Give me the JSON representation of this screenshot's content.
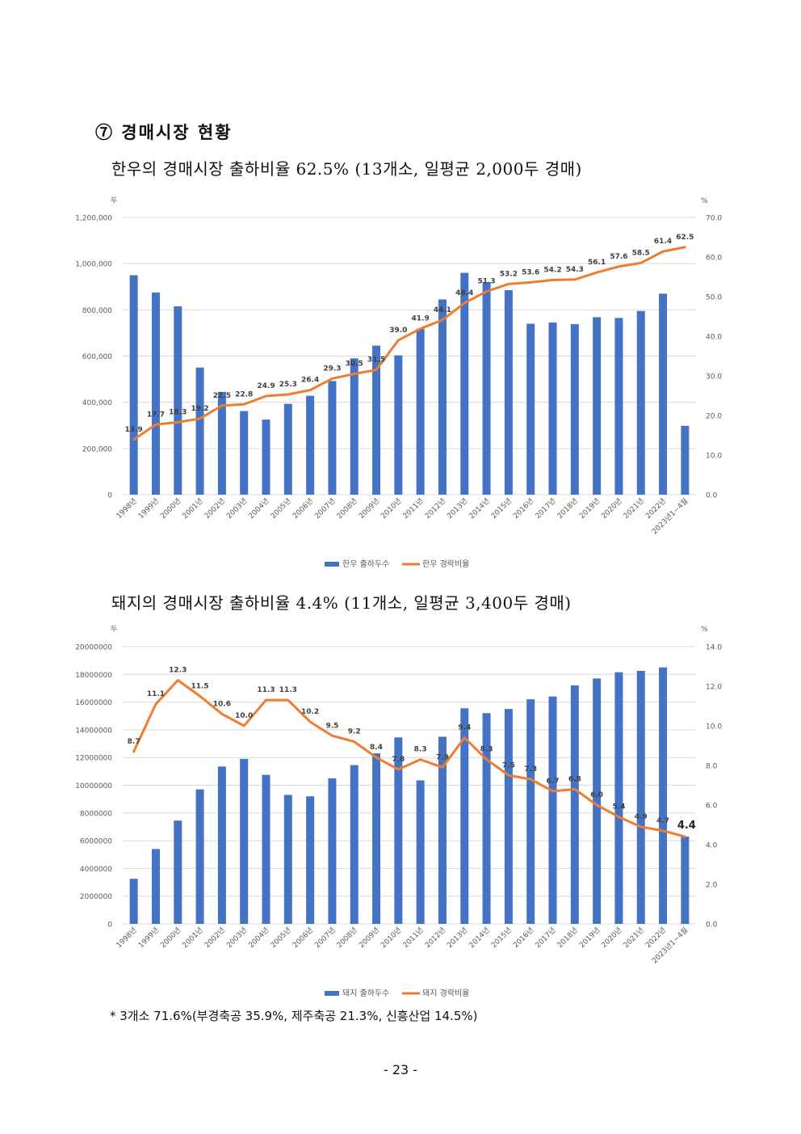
{
  "section": {
    "heading": "⑦ 경매시장 현황",
    "subtitle_1": "한우의 경매시장 출하비율 62.5% (13개소, 일평균 2,000두 경매)",
    "subtitle_2": "돼지의 경매시장 출하비율 4.4% (11개소, 일평균 3,400두 경매)",
    "footnote": "* 3개소 71.6%(부경축공 35.9%, 제주축공 21.3%, 신흥산업 14.5%)",
    "page_number": "- 23 -"
  },
  "colors": {
    "bar": "#4472C4",
    "line": "#ED7D31",
    "grid": "#D9D9D9",
    "axis_text": "#595959"
  },
  "chart_data": [
    {
      "type": "bar",
      "title": "",
      "categories": [
        "1998년",
        "1999년",
        "2000년",
        "2001년",
        "2002년",
        "2003년",
        "2004년",
        "2005년",
        "2006년",
        "2007년",
        "2008년",
        "2009년",
        "2010년",
        "2011년",
        "2012년",
        "2013년",
        "2014년",
        "2015년",
        "2016년",
        "2017년",
        "2018년",
        "2019년",
        "2020년",
        "2021년",
        "2022년",
        "2023년1~4월"
      ],
      "ylabel_left": "두",
      "ylabel_right": "%",
      "ylim_left": [
        0,
        1200000
      ],
      "yticks_left": [
        "0",
        "200,000",
        "400,000",
        "600,000",
        "800,000",
        "1,000,000",
        "1,200,000"
      ],
      "ylim_right": [
        0,
        70
      ],
      "yticks_right": [
        "0.0",
        "10.0",
        "20.0",
        "30.0",
        "40.0",
        "50.0",
        "60.0",
        "70.0"
      ],
      "grid": true,
      "legend_position": "bottom",
      "series": [
        {
          "name": "한우 출하두수",
          "type": "bar",
          "axis": "left",
          "values": [
            950000,
            875000,
            815000,
            550000,
            445000,
            362000,
            325000,
            393000,
            428000,
            492000,
            590000,
            645000,
            603000,
            718000,
            845000,
            960000,
            920000,
            885000,
            740000,
            745000,
            738000,
            768000,
            765000,
            795000,
            870000,
            298000
          ]
        },
        {
          "name": "한우 경락비율",
          "type": "line",
          "axis": "right",
          "values": [
            13.9,
            17.7,
            18.3,
            19.2,
            22.5,
            22.8,
            24.9,
            25.3,
            26.4,
            29.3,
            30.5,
            31.5,
            39.0,
            41.9,
            44.1,
            48.4,
            51.3,
            53.2,
            53.6,
            54.2,
            54.3,
            56.1,
            57.6,
            58.5,
            61.4,
            62.5
          ],
          "labels": [
            "13.9",
            "17.7",
            "18.3",
            "19.2",
            "22.5",
            "22.8",
            "24.9",
            "25.3",
            "26.4",
            "29.3",
            "30.5",
            "31.5",
            "39.0",
            "41.9",
            "44.1",
            "48.4",
            "51.3",
            "53.2",
            "53.6",
            "54.2",
            "54.3",
            "56.1",
            "57.6",
            "58.5",
            "61.4",
            "62.5"
          ]
        }
      ]
    },
    {
      "type": "bar",
      "title": "",
      "categories": [
        "1998년",
        "1999년",
        "2000년",
        "2001년",
        "2002년",
        "2003년",
        "2004년",
        "2005년",
        "2006년",
        "2007년",
        "2008년",
        "2009년",
        "2010년",
        "2011년",
        "2012년",
        "2013년",
        "2014년",
        "2015년",
        "2016년",
        "2017년",
        "2018년",
        "2019년",
        "2020년",
        "2021년",
        "2022년",
        "2023년1~4월"
      ],
      "ylabel_left": "두",
      "ylabel_right": "%",
      "ylim_left": [
        0,
        20000000
      ],
      "yticks_left": [
        "0",
        "2000000",
        "4000000",
        "6000000",
        "8000000",
        "10000000",
        "12000000",
        "14000000",
        "16000000",
        "18000000",
        "20000000"
      ],
      "ylim_right": [
        0,
        14
      ],
      "yticks_right": [
        "0.0",
        "2.0",
        "4.0",
        "6.0",
        "8.0",
        "10.0",
        "12.0",
        "14.0"
      ],
      "grid": true,
      "legend_position": "bottom",
      "series": [
        {
          "name": "돼지 출하두수",
          "type": "bar",
          "axis": "left",
          "values": [
            3250000,
            5400000,
            7450000,
            9700000,
            11350000,
            11900000,
            10750000,
            9300000,
            9200000,
            10500000,
            11450000,
            12300000,
            13450000,
            10350000,
            13500000,
            15550000,
            15200000,
            15500000,
            16200000,
            16400000,
            17200000,
            17700000,
            18150000,
            18250000,
            18500000,
            6300000
          ]
        },
        {
          "name": "돼지 경락비율",
          "type": "line",
          "axis": "right",
          "values": [
            8.7,
            11.1,
            12.3,
            11.5,
            10.6,
            10.0,
            11.3,
            11.3,
            10.2,
            9.5,
            9.2,
            8.4,
            7.8,
            8.3,
            7.9,
            9.4,
            8.3,
            7.5,
            7.3,
            6.7,
            6.8,
            6.0,
            5.4,
            4.9,
            4.7,
            4.4
          ],
          "labels": [
            "8.7",
            "11.1",
            "12.3",
            "11.5",
            "10.6",
            "10.0",
            "11.3",
            "11.3",
            "10.2",
            "9.5",
            "9.2",
            "8.4",
            "7.8",
            "8.3",
            "7.9",
            "9.4",
            "8.3",
            "7.5",
            "7.3",
            "6.7",
            "6.8",
            "6.0",
            "5.4",
            "4.9",
            "4.7",
            "4.4"
          ]
        }
      ]
    }
  ]
}
